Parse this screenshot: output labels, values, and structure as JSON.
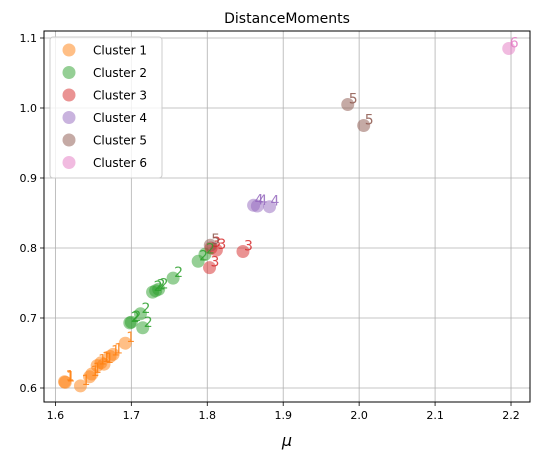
{
  "chart_data": {
    "type": "scatter",
    "title": "DistanceMoments",
    "xlabel": "μ",
    "ylabel": "",
    "xlim": [
      1.585,
      2.225
    ],
    "ylim": [
      0.58,
      1.11
    ],
    "xticks": [
      1.6,
      1.7,
      1.8,
      1.9,
      2.0,
      2.1,
      2.2
    ],
    "xtick_labels": [
      "1.6",
      "1.7",
      "1.8",
      "1.9",
      "2.0",
      "2.1",
      "2.2"
    ],
    "yticks": [
      0.6,
      0.7,
      0.8,
      0.9,
      1.0,
      1.1
    ],
    "ytick_labels": [
      "0.6",
      "0.7",
      "0.8",
      "0.9",
      "1.0",
      "1.1"
    ],
    "grid": true,
    "legend_position": "top-left",
    "series": [
      {
        "name": "Cluster 1",
        "label": "1",
        "color": "#ff7f0e",
        "points": [
          {
            "x": 1.612,
            "y": 0.609
          },
          {
            "x": 1.613,
            "y": 0.608
          },
          {
            "x": 1.633,
            "y": 0.603
          },
          {
            "x": 1.645,
            "y": 0.616
          },
          {
            "x": 1.648,
            "y": 0.62
          },
          {
            "x": 1.655,
            "y": 0.632
          },
          {
            "x": 1.66,
            "y": 0.636
          },
          {
            "x": 1.664,
            "y": 0.634
          },
          {
            "x": 1.672,
            "y": 0.645
          },
          {
            "x": 1.676,
            "y": 0.648
          },
          {
            "x": 1.692,
            "y": 0.664
          }
        ]
      },
      {
        "name": "Cluster 2",
        "label": "2",
        "color": "#2ca02c",
        "points": [
          {
            "x": 1.698,
            "y": 0.693
          },
          {
            "x": 1.7,
            "y": 0.694
          },
          {
            "x": 1.712,
            "y": 0.706
          },
          {
            "x": 1.715,
            "y": 0.686
          },
          {
            "x": 1.728,
            "y": 0.737
          },
          {
            "x": 1.732,
            "y": 0.739
          },
          {
            "x": 1.736,
            "y": 0.741
          },
          {
            "x": 1.755,
            "y": 0.757
          },
          {
            "x": 1.788,
            "y": 0.781
          },
          {
            "x": 1.797,
            "y": 0.791
          }
        ]
      },
      {
        "name": "Cluster 3",
        "label": "3",
        "color": "#d62728",
        "points": [
          {
            "x": 1.803,
            "y": 0.772
          },
          {
            "x": 1.805,
            "y": 0.8
          },
          {
            "x": 1.812,
            "y": 0.797
          },
          {
            "x": 1.847,
            "y": 0.795
          }
        ]
      },
      {
        "name": "Cluster 4",
        "label": "4",
        "color": "#9467bd",
        "points": [
          {
            "x": 1.861,
            "y": 0.861
          },
          {
            "x": 1.866,
            "y": 0.86
          },
          {
            "x": 1.882,
            "y": 0.859
          }
        ]
      },
      {
        "name": "Cluster 5",
        "label": "5",
        "color": "#8c564b",
        "points": [
          {
            "x": 1.804,
            "y": 0.804
          },
          {
            "x": 1.985,
            "y": 1.005
          },
          {
            "x": 2.006,
            "y": 0.975
          }
        ]
      },
      {
        "name": "Cluster 6",
        "label": "6",
        "color": "#e377c2",
        "points": [
          {
            "x": 2.197,
            "y": 1.085
          }
        ]
      }
    ]
  }
}
